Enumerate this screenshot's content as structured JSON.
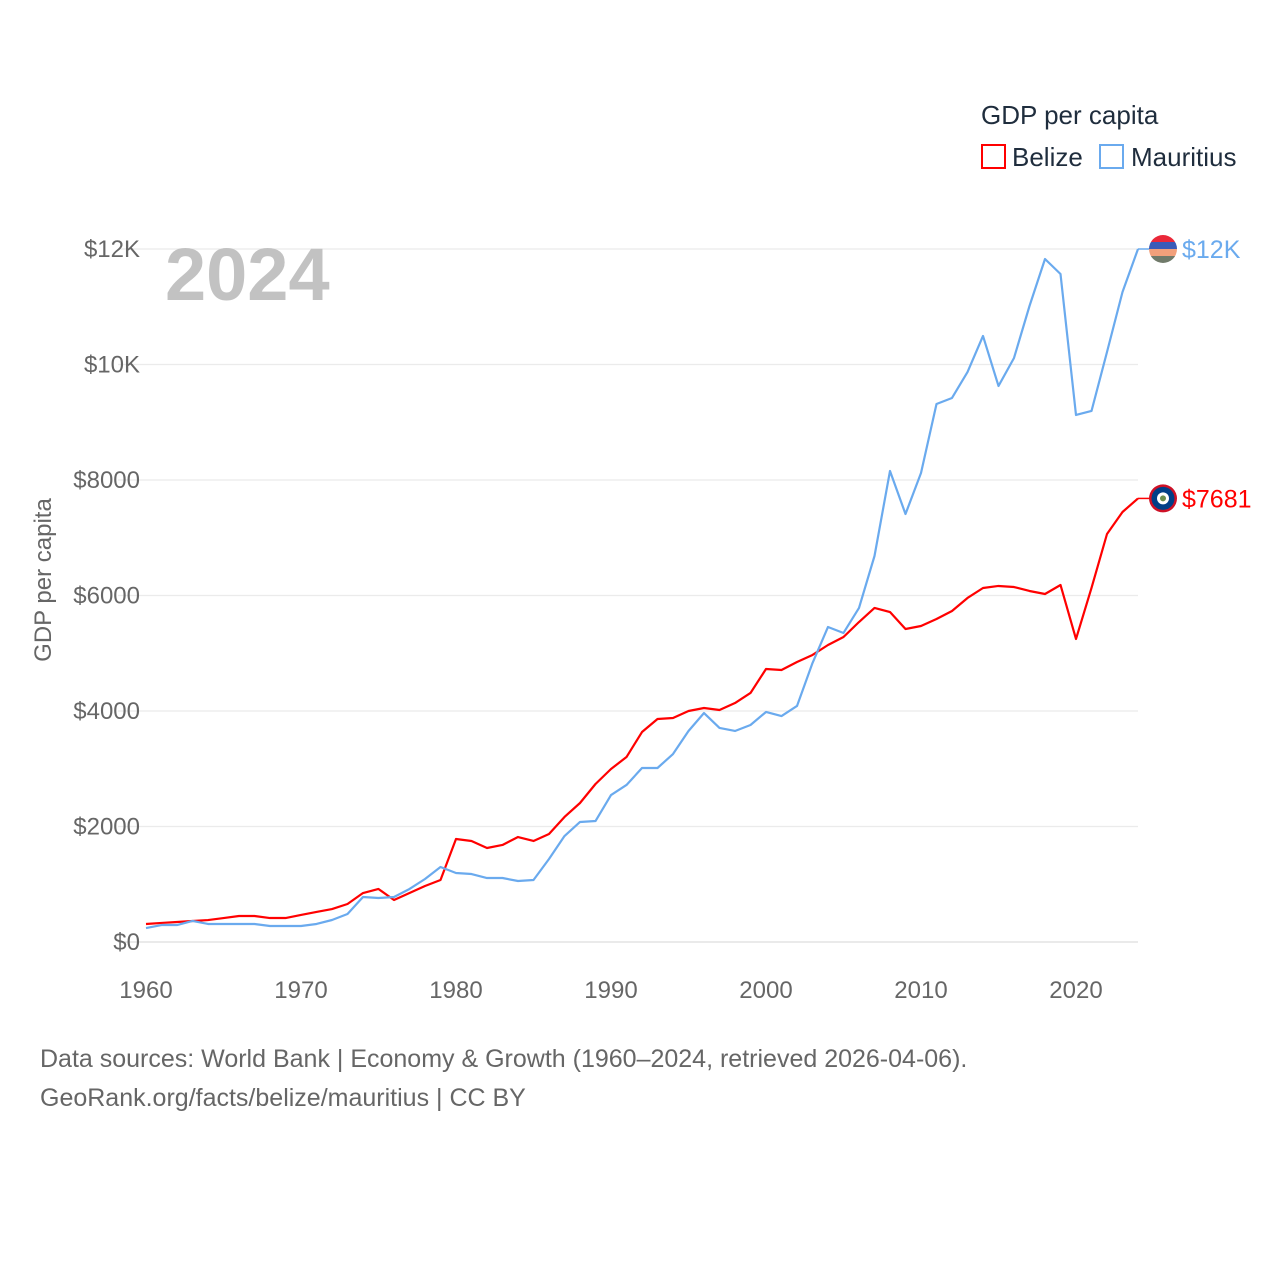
{
  "chart_data": {
    "type": "line",
    "title": "",
    "year_label": "2024",
    "xlabel": "",
    "ylabel": "GDP per capita",
    "xlim": [
      1960,
      2024
    ],
    "ylim": [
      0,
      12000
    ],
    "x_ticks": [
      1960,
      1970,
      1980,
      1990,
      2000,
      2010,
      2020
    ],
    "x_tick_labels": [
      "1960",
      "1970",
      "1980",
      "1990",
      "2000",
      "2010",
      "2020"
    ],
    "y_ticks": [
      0,
      2000,
      4000,
      6000,
      8000,
      10000,
      12000
    ],
    "y_tick_labels": [
      "$0",
      "$2000",
      "$4000",
      "$6000",
      "$8000",
      "$10K",
      "$12K"
    ],
    "grid": true,
    "legend": {
      "title": "GDP per capita",
      "placement": "top-right"
    },
    "x": [
      1960,
      1961,
      1962,
      1963,
      1964,
      1965,
      1966,
      1967,
      1968,
      1969,
      1970,
      1971,
      1972,
      1973,
      1974,
      1975,
      1976,
      1977,
      1978,
      1979,
      1980,
      1981,
      1982,
      1983,
      1984,
      1985,
      1986,
      1987,
      1988,
      1989,
      1990,
      1991,
      1992,
      1993,
      1994,
      1995,
      1996,
      1997,
      1998,
      1999,
      2000,
      2001,
      2002,
      2003,
      2004,
      2005,
      2006,
      2007,
      2008,
      2009,
      2010,
      2011,
      2012,
      2013,
      2014,
      2015,
      2016,
      2017,
      2018,
      2019,
      2020,
      2021,
      2022,
      2023,
      2024
    ],
    "series": [
      {
        "name": "Belize",
        "color": "#ff0000",
        "end_label": "$7681",
        "values": [
          312,
          330,
          346,
          364,
          380,
          415,
          450,
          450,
          415,
          415,
          468,
          520,
          571,
          658,
          848,
          918,
          727,
          848,
          970,
          1074,
          1784,
          1749,
          1628,
          1680,
          1818,
          1749,
          1870,
          2165,
          2407,
          2736,
          2996,
          3203,
          3636,
          3861,
          3879,
          4000,
          4052,
          4017,
          4138,
          4312,
          4727,
          4710,
          4848,
          4970,
          5143,
          5281,
          5541,
          5784,
          5714,
          5420,
          5472,
          5593,
          5732,
          5957,
          6130,
          6165,
          6147,
          6078,
          6026,
          6182,
          5247,
          6130,
          7065,
          7446,
          7681
        ]
      },
      {
        "name": "Mauritius",
        "color": "#6aaaee",
        "end_label": "$12K",
        "values": [
          242,
          294,
          294,
          364,
          312,
          312,
          312,
          312,
          277,
          277,
          277,
          312,
          381,
          485,
          779,
          762,
          779,
          918,
          1091,
          1299,
          1195,
          1177,
          1108,
          1108,
          1056,
          1074,
          1437,
          1835,
          2078,
          2095,
          2545,
          2719,
          3013,
          3013,
          3255,
          3654,
          3965,
          3706,
          3654,
          3758,
          3983,
          3913,
          4087,
          4831,
          5455,
          5351,
          5784,
          6684,
          8156,
          7411,
          8121,
          9316,
          9420,
          9870,
          10494,
          9628,
          10113,
          11013,
          11827,
          11567,
          9126,
          9195,
          10216,
          11255,
          12000
        ]
      }
    ]
  },
  "footer": {
    "line1": "Data sources: World Bank | Economy & Growth (1960–2024, retrieved 2026-04-06).",
    "line2": "GeoRank.org/facts/belize/mauritius | CC BY"
  }
}
